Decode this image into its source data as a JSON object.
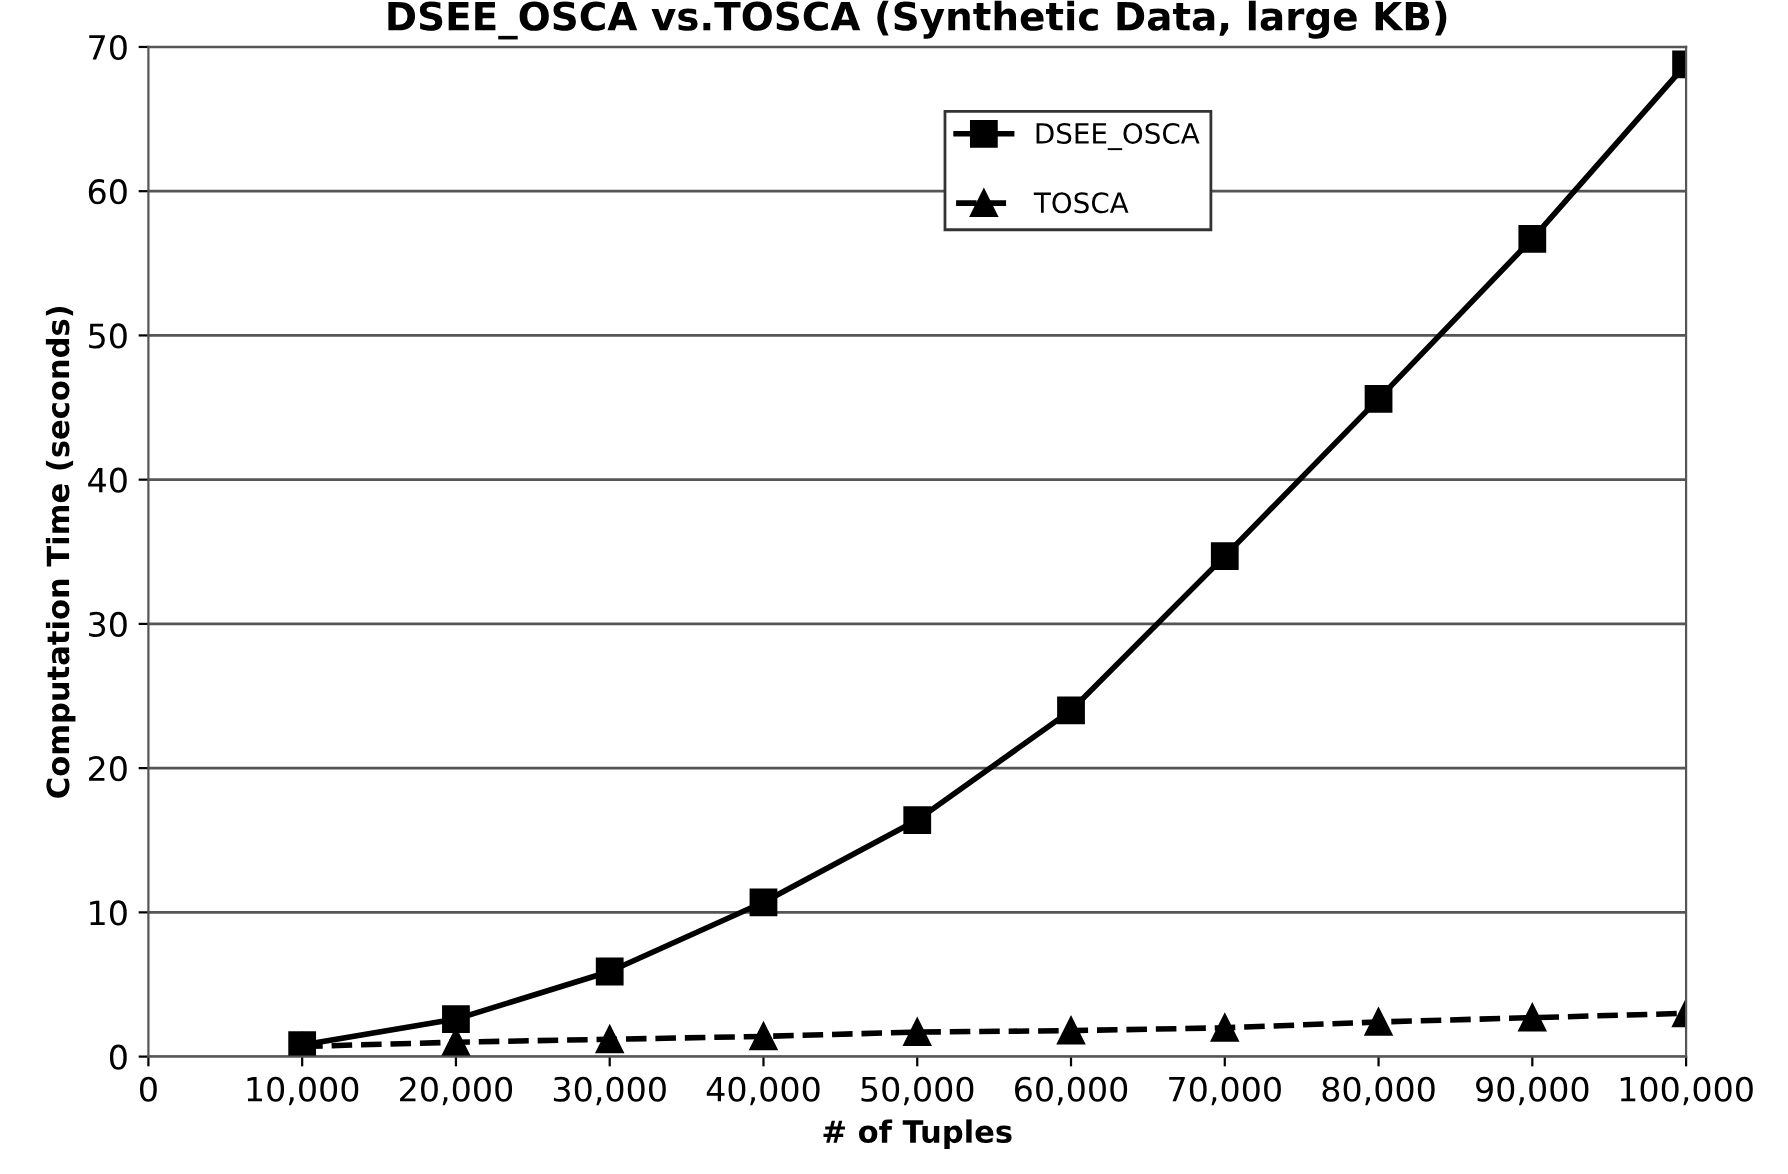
{
  "chart_data": {
    "type": "line",
    "title": "DSEE_OSCA vs.TOSCA (Synthetic Data, large KB)",
    "xlabel": "# of Tuples",
    "ylabel": "Computation Time (seconds)",
    "x": [
      10000,
      20000,
      30000,
      40000,
      50000,
      60000,
      70000,
      80000,
      90000,
      100000
    ],
    "series": [
      {
        "name": "DSEE_OSCA",
        "color": "#000000",
        "marker": "square",
        "line_style": "solid",
        "values": [
          0.8,
          2.6,
          5.9,
          10.7,
          16.4,
          24.0,
          34.7,
          45.6,
          56.7,
          68.8
        ]
      },
      {
        "name": "TOSCA",
        "color": "#000000",
        "marker": "triangle",
        "line_style": "dashed",
        "values": [
          0.7,
          1.0,
          1.2,
          1.4,
          1.7,
          1.8,
          2.0,
          2.4,
          2.7,
          3.0
        ]
      }
    ],
    "xlim": [
      0,
      100000
    ],
    "xticks": [
      {
        "value": 0,
        "label": "0"
      },
      {
        "value": 10000,
        "label": "10,000"
      },
      {
        "value": 20000,
        "label": "20,000"
      },
      {
        "value": 30000,
        "label": "30,000"
      },
      {
        "value": 40000,
        "label": "40,000"
      },
      {
        "value": 50000,
        "label": "50,000"
      },
      {
        "value": 60000,
        "label": "60,000"
      },
      {
        "value": 70000,
        "label": "70,000"
      },
      {
        "value": 80000,
        "label": "80,000"
      },
      {
        "value": 90000,
        "label": "90,000"
      },
      {
        "value": 100000,
        "label": "100,000"
      }
    ],
    "ylim": [
      0,
      70
    ],
    "yticks": [
      0,
      10,
      20,
      30,
      40,
      50,
      60,
      70
    ],
    "grid": "y",
    "legend": "top right"
  }
}
